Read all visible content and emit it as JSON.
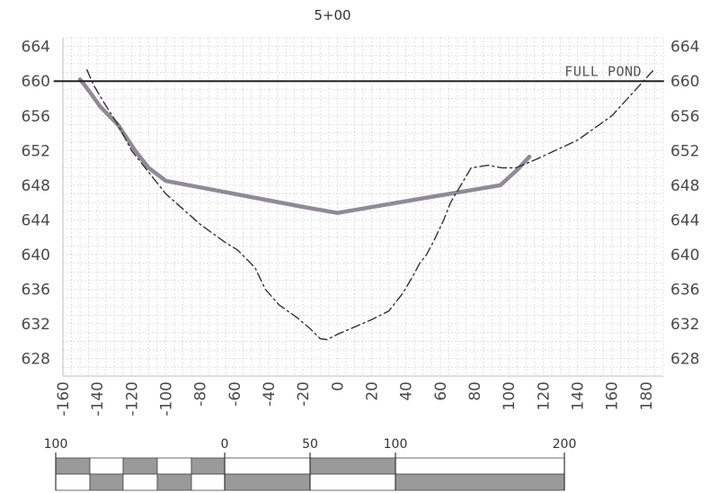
{
  "chart_data": {
    "type": "line",
    "title": "5+00",
    "xlabel": "",
    "ylabel": "",
    "xlim": [
      -160,
      190
    ],
    "ylim": [
      626,
      665
    ],
    "x_ticks": [
      "-160",
      "-140",
      "-120",
      "-100",
      "-80",
      "-60",
      "-40",
      "-20",
      "0",
      "20",
      "40",
      "60",
      "80",
      "100",
      "120",
      "140",
      "160",
      "180"
    ],
    "y_ticks_left": [
      "664",
      "660",
      "656",
      "652",
      "648",
      "644",
      "640",
      "636",
      "632",
      "628"
    ],
    "y_ticks_right": [
      "664",
      "660",
      "656",
      "652",
      "648",
      "644",
      "640",
      "636",
      "632",
      "628"
    ],
    "grid": true,
    "series": [
      {
        "name": "",
        "style": "solid-thick",
        "color": "#8f8a96",
        "x": [
          -150,
          -146,
          -138,
          -128,
          -118,
          -110,
          -100,
          -60,
          -20,
          0,
          50,
          95,
          105,
          112
        ],
        "y": [
          660.2,
          659.2,
          657.0,
          655.0,
          652.0,
          650.0,
          648.5,
          647.0,
          645.5,
          644.8,
          646.5,
          648.0,
          649.8,
          651.3
        ]
      },
      {
        "name": "",
        "style": "dash-dot",
        "color": "#333333",
        "x": [
          -146,
          -142,
          -136,
          -128,
          -120,
          -110,
          -100,
          -80,
          -66,
          -58,
          -48,
          -42,
          -34,
          -24,
          -16,
          -10,
          -6,
          0,
          20,
          30,
          38,
          44,
          48,
          52,
          56,
          62,
          66,
          72,
          78,
          88,
          96,
          104,
          116,
          140,
          160,
          184
        ],
        "y": [
          661.3,
          659.5,
          657.5,
          655.0,
          652.0,
          649.5,
          647.0,
          643.5,
          641.5,
          640.5,
          638.5,
          636.0,
          634.2,
          632.8,
          631.5,
          630.3,
          630.2,
          630.8,
          632.5,
          633.5,
          635.5,
          637.5,
          639.0,
          640.0,
          641.5,
          644.0,
          646.0,
          648.0,
          650.0,
          650.3,
          650.0,
          650.0,
          651.0,
          653.2,
          656.0,
          661.2
        ]
      },
      {
        "name": "",
        "style": "solid-reference",
        "color": "#222222",
        "x": [
          -165,
          190
        ],
        "y": [
          660,
          660
        ]
      }
    ],
    "annotations": [
      {
        "text": "FULL POND",
        "x": 155,
        "y": 660.4
      }
    ]
  },
  "scale_bar": {
    "labels": [
      "100",
      "0",
      "50",
      "100",
      "200"
    ]
  }
}
